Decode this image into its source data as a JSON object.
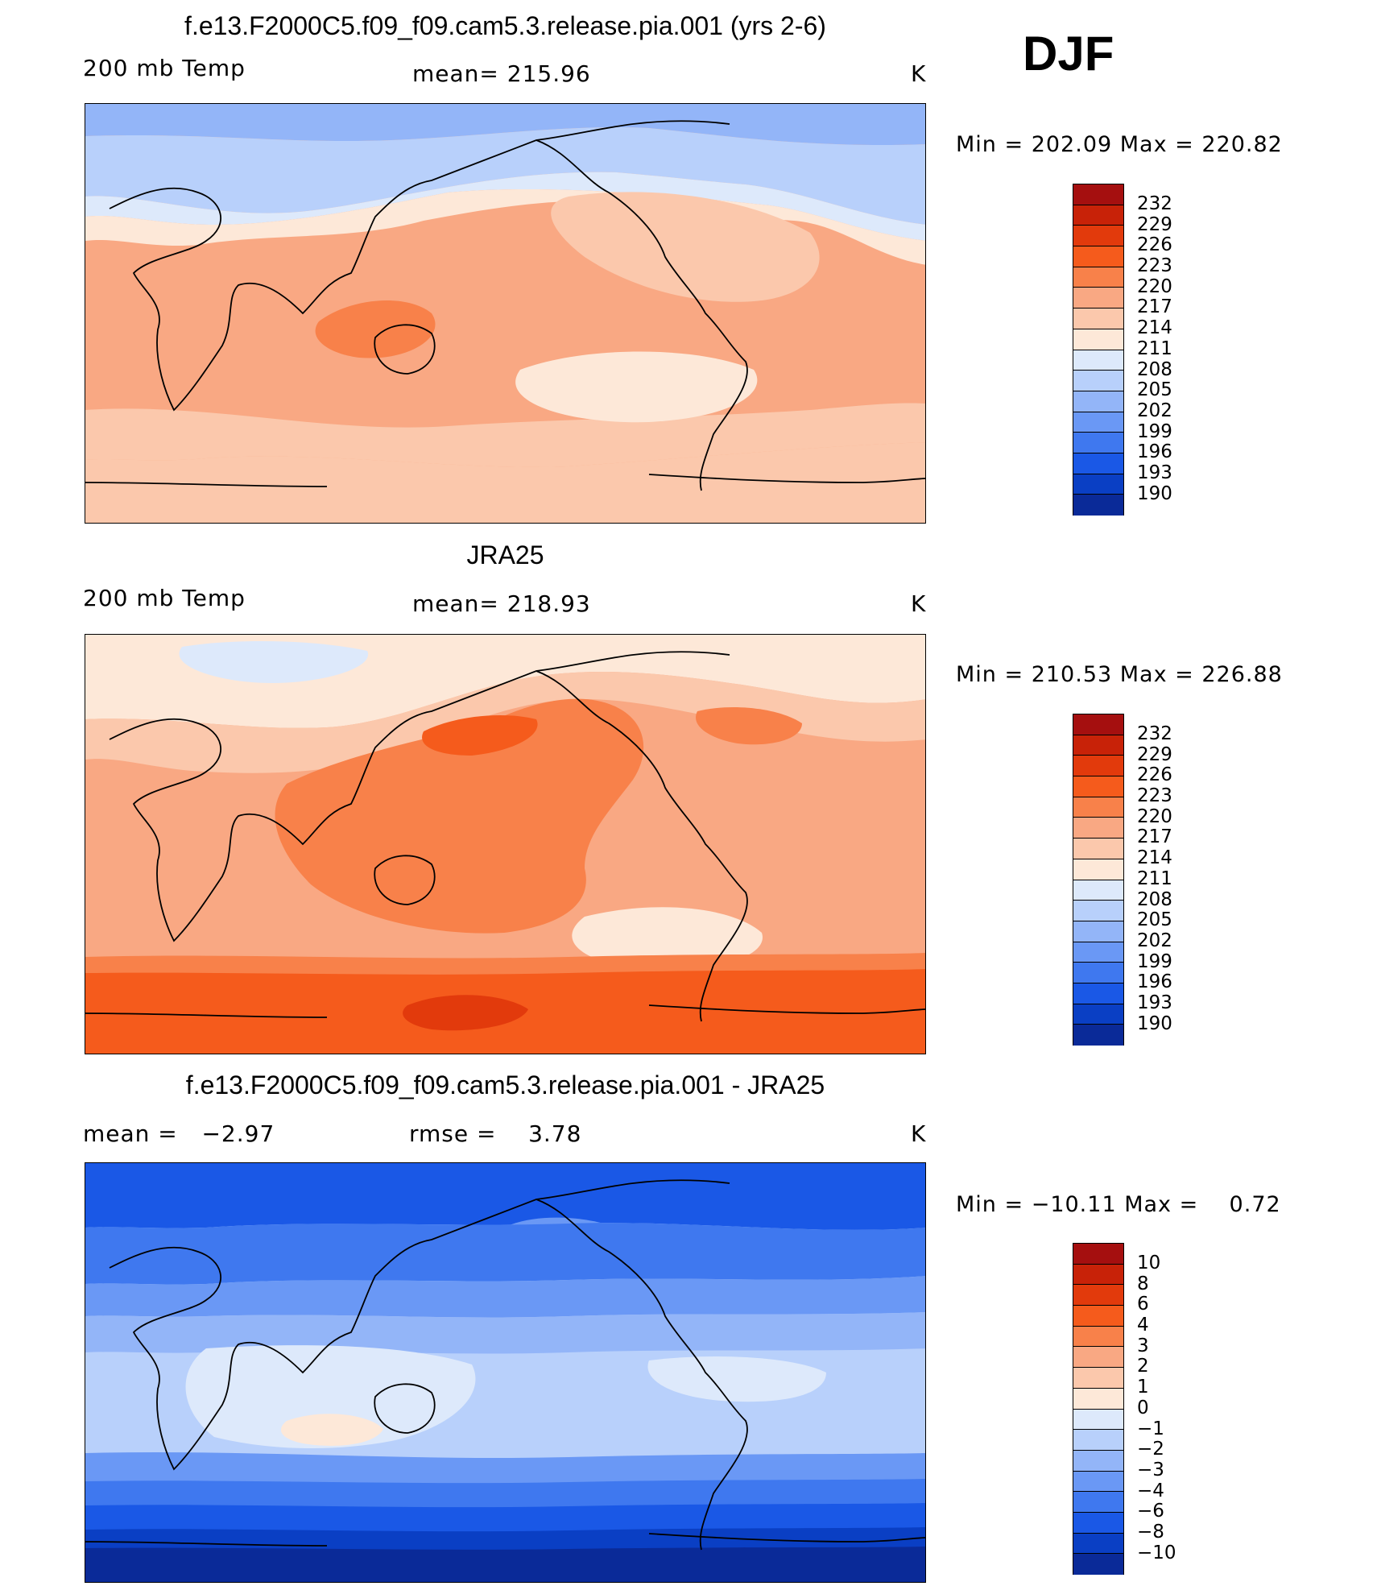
{
  "season": "DJF",
  "colorbars": {
    "abs": {
      "colors": [
        "#a50f0f",
        "#c82208",
        "#e23a0c",
        "#f55b1c",
        "#f8814a",
        "#f9a883",
        "#fbc8ac",
        "#fde8d8",
        "#dde9fb",
        "#b8d0fb",
        "#93b5f8",
        "#6a98f5",
        "#3f78ef",
        "#1a58e6",
        "#0a3fc4",
        "#0a2a98"
      ],
      "ticks": [
        "232",
        "229",
        "226",
        "223",
        "220",
        "217",
        "214",
        "211",
        "208",
        "205",
        "202",
        "199",
        "196",
        "193",
        "190"
      ]
    },
    "diff": {
      "colors": [
        "#a50f0f",
        "#c82208",
        "#e23a0c",
        "#f55b1c",
        "#f8814a",
        "#f9a883",
        "#fbc8ac",
        "#fde8d8",
        "#dde9fb",
        "#b8d0fb",
        "#93b5f8",
        "#6a98f5",
        "#3f78ef",
        "#1a58e6",
        "#0a3fc4",
        "#0a2a98"
      ],
      "ticks": [
        "10",
        "8",
        "6",
        "4",
        "3",
        "2",
        "1",
        "0",
        "−1",
        "−2",
        "−3",
        "−4",
        "−6",
        "−8",
        "−10"
      ]
    }
  },
  "panels": [
    {
      "title": "f.e13.F2000C5.f09_f09.cam5.3.release.pia.001 (yrs 2-6)",
      "left_label": "200 mb Temp",
      "center_label": "mean= 215.96",
      "units": "K",
      "minmax": "Min = 202.09 Max = 220.82",
      "colors": {
        "bg": "#f9a883",
        "polar_n": "#93b5f8",
        "band_n1": "#b8d0fb",
        "band_n2": "#dde9fb",
        "band_n3": "#fde8d8",
        "band_n4": "#fbc8ac",
        "hot": "#f8814a",
        "south1": "#fbc8ac",
        "south2": "#fde8d8"
      }
    },
    {
      "title": "JRA25",
      "left_label": "200 mb Temp",
      "center_label": "mean= 218.93",
      "units": "K",
      "minmax": "Min = 210.53 Max = 226.88",
      "colors": {
        "bg": "#f9a883",
        "polar_n": "#fde8d8",
        "band_n1": "#dde9fb",
        "band_n2": "#fbc8ac",
        "hot": "#f8814a",
        "hot2": "#f55b1c",
        "south1": "#f8814a",
        "south2": "#f55b1c",
        "south3": "#e23a0c"
      }
    },
    {
      "title": "f.e13.F2000C5.f09_f09.cam5.3.release.pia.001 - JRA25",
      "left_label": "mean =   −2.97",
      "center_label": "rmse =    3.78",
      "units": "K",
      "minmax": "Min = −10.11 Max =    0.72",
      "colors": {
        "bg": "#b8d0fb",
        "polar_n": "#1a58e6",
        "band_n1": "#3f78ef",
        "band_n2": "#6a98f5",
        "band_n3": "#93b5f8",
        "trop": "#dde9fb",
        "warm": "#fde8d8",
        "south1": "#6a98f5",
        "south2": "#3f78ef",
        "south3": "#1a58e6",
        "south4": "#0a3fc4",
        "south5": "#0a2a98"
      }
    }
  ]
}
